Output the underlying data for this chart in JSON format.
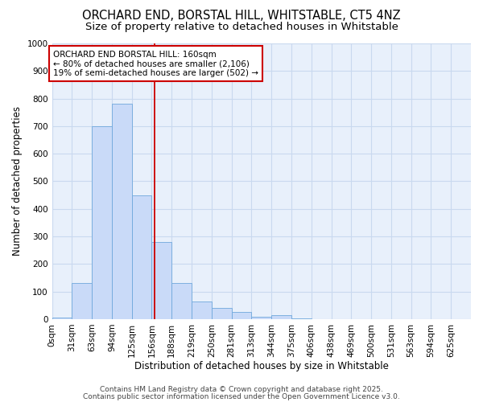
{
  "title1": "ORCHARD END, BORSTAL HILL, WHITSTABLE, CT5 4NZ",
  "title2": "Size of property relative to detached houses in Whitstable",
  "xlabel": "Distribution of detached houses by size in Whitstable",
  "ylabel": "Number of detached properties",
  "bar_labels": [
    "0sqm",
    "31sqm",
    "63sqm",
    "94sqm",
    "125sqm",
    "156sqm",
    "188sqm",
    "219sqm",
    "250sqm",
    "281sqm",
    "313sqm",
    "344sqm",
    "375sqm",
    "406sqm",
    "438sqm",
    "469sqm",
    "500sqm",
    "531sqm",
    "563sqm",
    "594sqm",
    "625sqm"
  ],
  "bar_values": [
    5,
    130,
    700,
    780,
    450,
    280,
    130,
    65,
    40,
    25,
    10,
    15,
    3,
    0,
    0,
    0,
    0,
    0,
    0,
    0,
    0
  ],
  "bar_color": "#c9daf8",
  "bar_edge_color": "#6fa8dc",
  "vline_x": 5.16,
  "vline_color": "#cc0000",
  "annotation_text": "ORCHARD END BORSTAL HILL: 160sqm\n← 80% of detached houses are smaller (2,106)\n19% of semi-detached houses are larger (502) →",
  "annotation_box_facecolor": "#ffffff",
  "annotation_box_edge": "#cc0000",
  "ylim": [
    0,
    1000
  ],
  "yticks": [
    0,
    100,
    200,
    300,
    400,
    500,
    600,
    700,
    800,
    900,
    1000
  ],
  "grid_color": "#c9d9ef",
  "bg_color": "#ffffff",
  "plot_bg_color": "#e8f0fb",
  "footer1": "Contains HM Land Registry data © Crown copyright and database right 2025.",
  "footer2": "Contains public sector information licensed under the Open Government Licence v3.0.",
  "title_fontsize": 10.5,
  "subtitle_fontsize": 9.5,
  "axis_label_fontsize": 8.5,
  "tick_fontsize": 7.5,
  "annotation_fontsize": 7.5,
  "footer_fontsize": 6.5
}
